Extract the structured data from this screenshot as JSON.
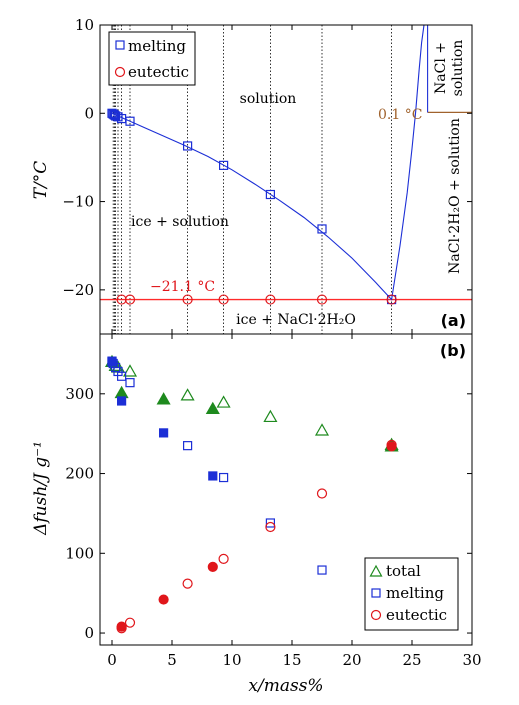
{
  "chart_data": [
    {
      "panel": "(a)",
      "type": "line",
      "ylabel": "T/°C",
      "ylim": [
        -25,
        10
      ],
      "xlim": [
        -1,
        30
      ],
      "y_ticks": [
        "10",
        "0",
        "−10",
        "−20"
      ],
      "series": [
        {
          "name": "melting",
          "marker": "square",
          "color": "#1c2fd6",
          "x": [
            0.0,
            0.1,
            0.2,
            0.3,
            0.5,
            0.8,
            1.5,
            6.3,
            9.3,
            13.2,
            17.5,
            23.3
          ],
          "y": [
            0.0,
            -0.1,
            -0.2,
            -0.3,
            -0.4,
            -0.6,
            -0.9,
            -3.7,
            -5.9,
            -9.2,
            -13.1,
            -21.1
          ]
        },
        {
          "name": "eutectic",
          "marker": "circle",
          "color": "#e0161b",
          "x": [
            0.8,
            1.5,
            6.3,
            9.3,
            13.2,
            17.5,
            23.3
          ],
          "y": [
            -21.1,
            -21.1,
            -21.1,
            -21.1,
            -21.1,
            -21.1,
            -21.1
          ]
        }
      ],
      "liquidus_curve": {
        "x": [
          0,
          2,
          4,
          6,
          8,
          10,
          12,
          14,
          16,
          18,
          20,
          22,
          23.3,
          24.0,
          24.6,
          25.0,
          25.3,
          25.6,
          25.8,
          26.0
        ],
        "y": [
          0,
          -1.2,
          -2.4,
          -3.6,
          -4.9,
          -6.4,
          -8.1,
          -9.9,
          -11.8,
          -14.0,
          -16.4,
          -19.2,
          -21.1,
          -15.0,
          -9.0,
          -4.0,
          0.1,
          5.0,
          8.0,
          10.0
        ]
      },
      "peritectic_line": {
        "x": [
          26.3,
          30
        ],
        "y": 0.1,
        "color": "#a0622d"
      },
      "eutectic_line": {
        "y": -21.1,
        "color": "#ff2a2a"
      },
      "sample_lines_x": [
        0.1,
        0.2,
        0.3,
        0.5,
        0.8,
        1.5,
        6.3,
        9.3,
        13.2,
        17.5,
        23.3
      ],
      "annotations": {
        "solution": "solution",
        "ice_solution": "ice + solution",
        "ice_hydrate": "ice + NaCl·2H₂O",
        "hydrate_solution": "NaCl·2H₂O + solution",
        "nacl_solution_line1": "NaCl +",
        "nacl_solution_line2": "solution",
        "eutectic_temp": "−21.1 °C",
        "peritectic_temp": "0.1 °C"
      },
      "legend": {
        "placement": "top-left",
        "entries": [
          "melting",
          "eutectic"
        ]
      }
    },
    {
      "panel": "(b)",
      "type": "scatter",
      "xlabel": "x/mass%",
      "ylabel": "Δfush/J g⁻¹",
      "xlim": [
        -1,
        30
      ],
      "ylim": [
        -15,
        375
      ],
      "x_ticks": [
        "0",
        "5",
        "10",
        "15",
        "20",
        "25",
        "30"
      ],
      "y_ticks": [
        "0",
        "100",
        "200",
        "300"
      ],
      "series": [
        {
          "name": "total",
          "marker": "triangle",
          "color": "#1e8a1e",
          "open": {
            "x": [
              0.3,
              0.5,
              1.5,
              6.3,
              9.3,
              13.2,
              17.5,
              23.3
            ],
            "y": [
              335,
              333,
              328,
              298,
              289,
              271,
              254,
              236
            ]
          },
          "filled": {
            "x": [
              0.0,
              0.8,
              4.3,
              8.4,
              23.3
            ],
            "y": [
              340,
              301,
              293,
              281,
              234
            ]
          }
        },
        {
          "name": "melting",
          "marker": "square",
          "color": "#1c2fd6",
          "open": {
            "x": [
              0.0,
              0.1,
              0.3,
              0.5,
              0.8,
              1.5,
              6.3,
              9.3,
              13.2,
              17.5
            ],
            "y": [
              340,
              338,
              333,
              328,
              322,
              314,
              235,
              195,
              138,
              79
            ]
          },
          "filled": {
            "x": [
              0.0,
              0.8,
              4.3,
              8.4
            ],
            "y": [
              341,
              291,
              251,
              197
            ]
          }
        },
        {
          "name": "eutectic",
          "marker": "circle",
          "color": "#e0161b",
          "open": {
            "x": [
              0.8,
              1.5,
              6.3,
              9.3,
              13.2,
              17.5,
              23.3
            ],
            "y": [
              6,
              13,
              62,
              93,
              133,
              175,
              236
            ]
          },
          "filled": {
            "x": [
              0.8,
              4.3,
              8.4,
              23.3
            ],
            "y": [
              8,
              42,
              83,
              234
            ]
          }
        }
      ],
      "legend": {
        "placement": "bottom-right",
        "entries": [
          "total",
          "melting",
          "eutectic"
        ]
      }
    }
  ]
}
